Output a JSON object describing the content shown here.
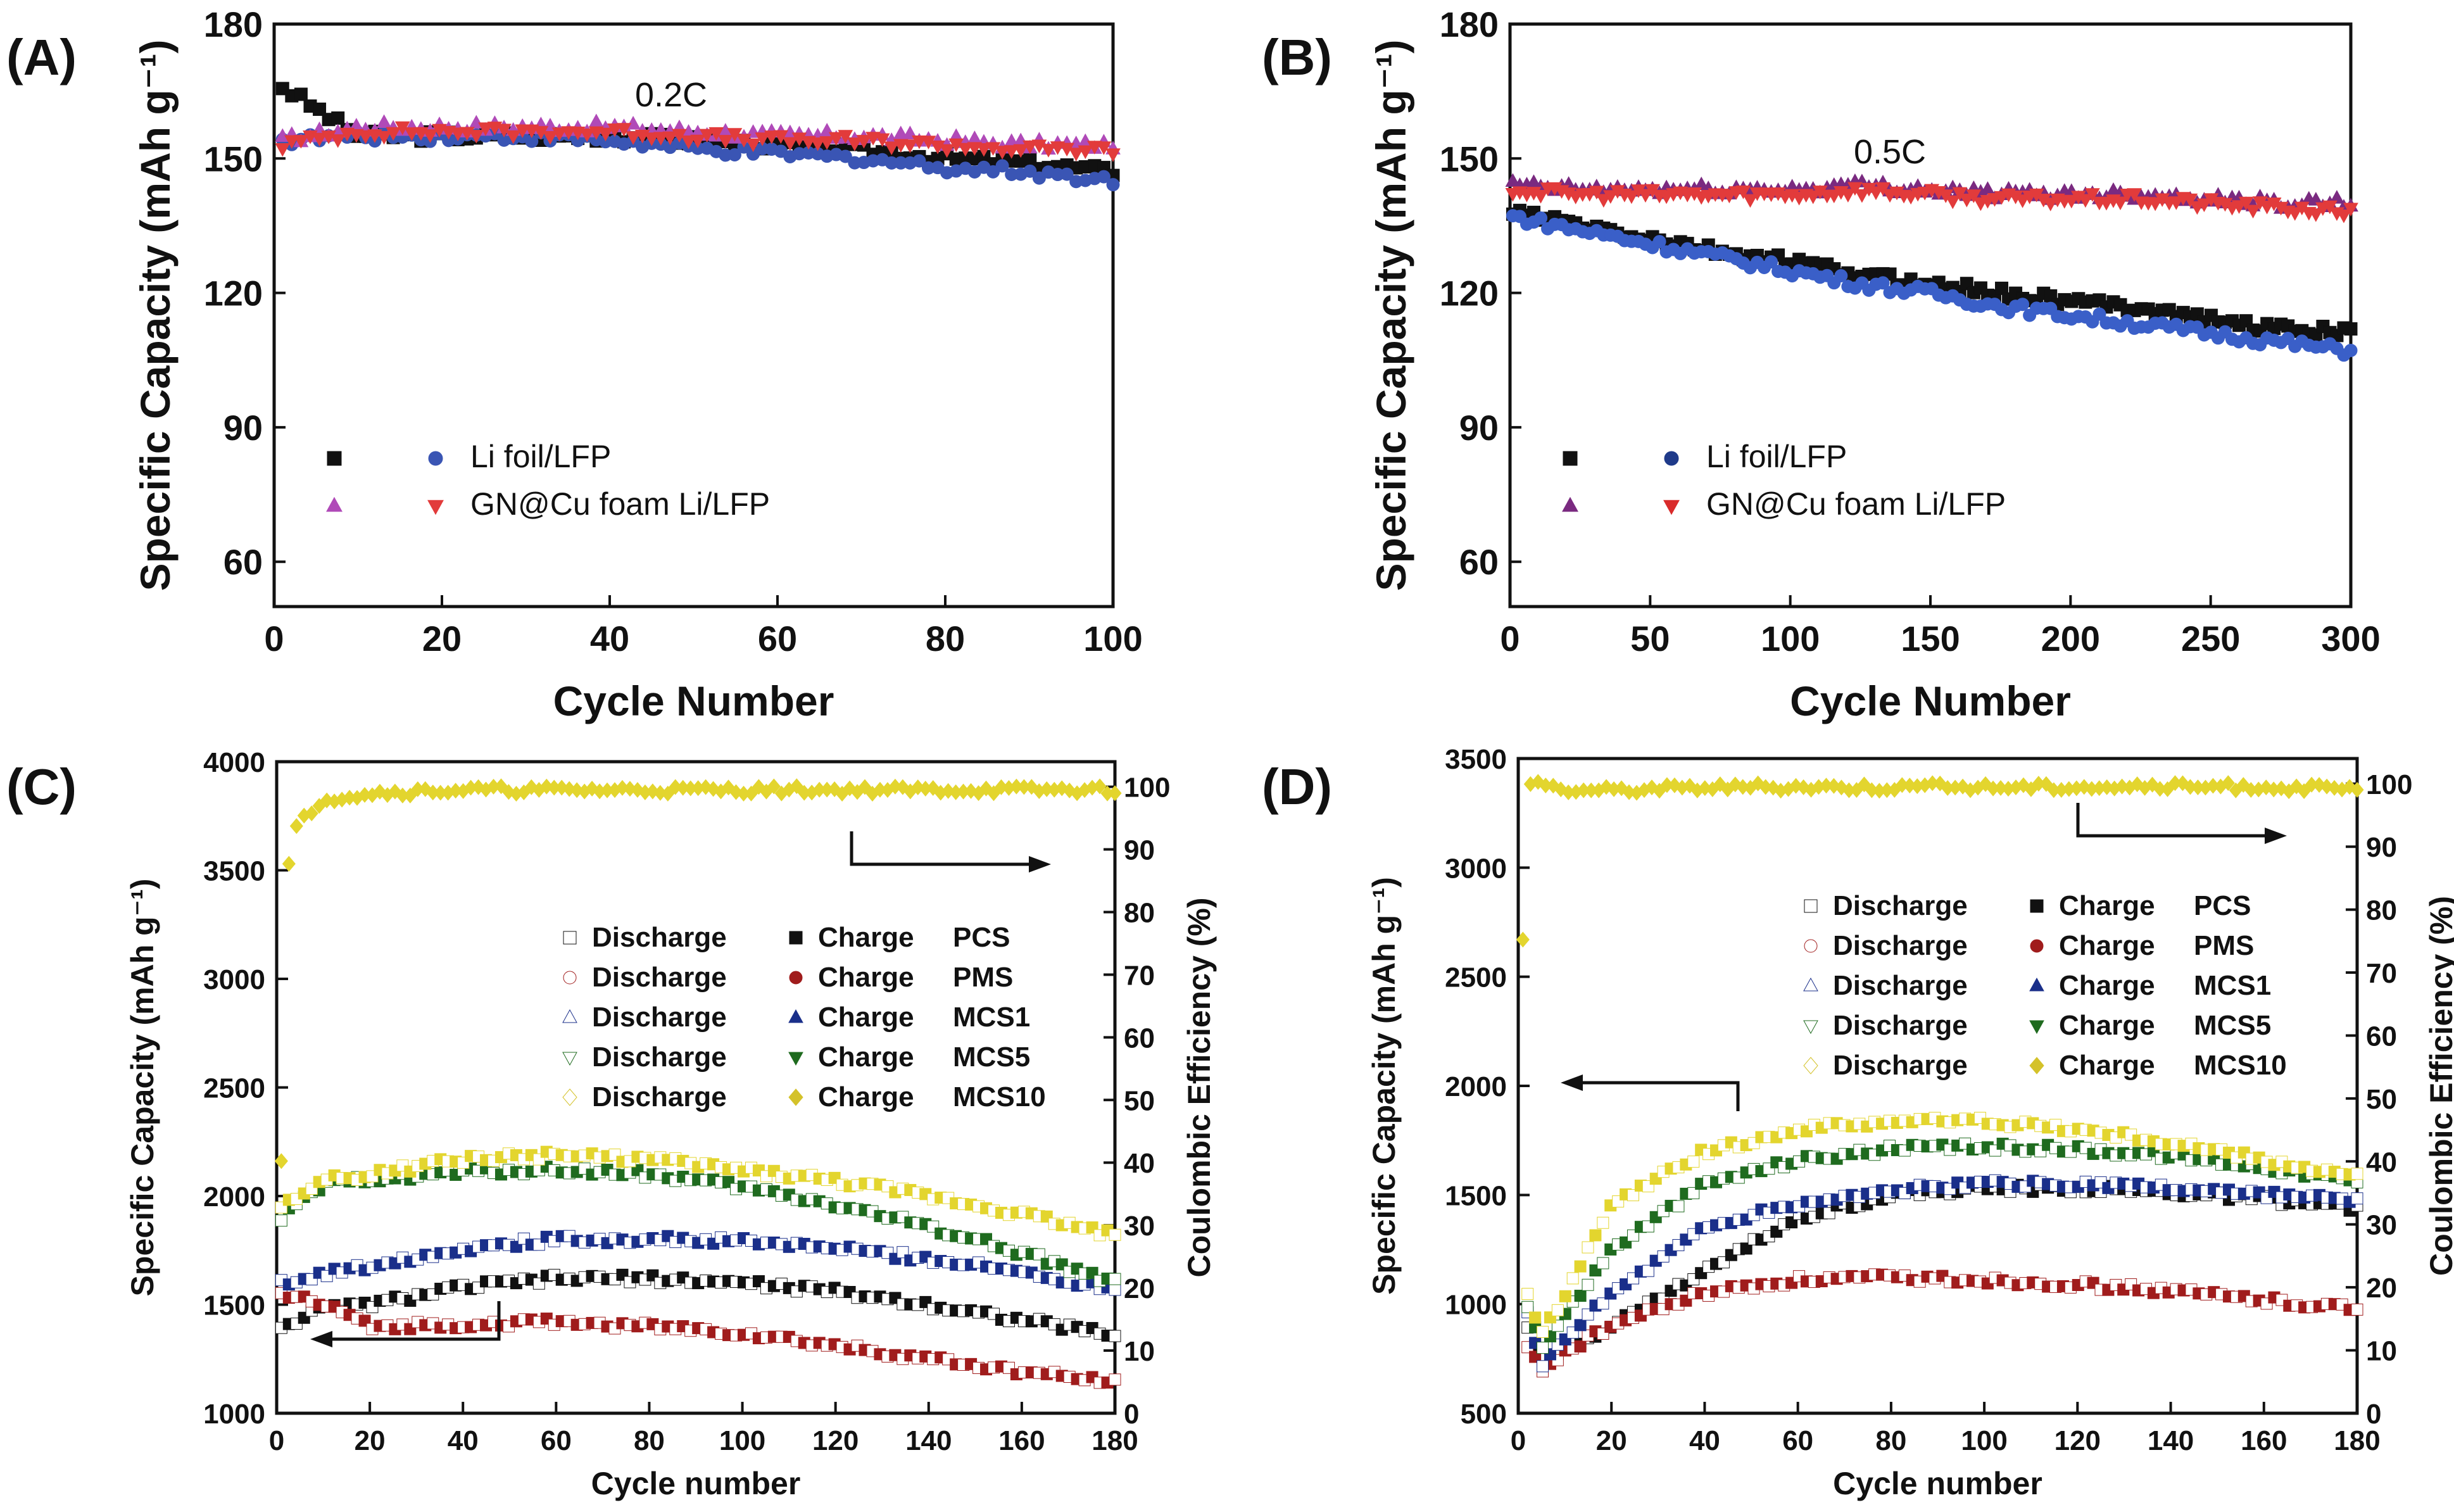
{
  "chart_data": [
    {
      "panel": "(A)",
      "type": "scatter",
      "annotation": "0.2C",
      "xlabel": "Cycle Number",
      "ylabel": "Specific Capacity (mAh g⁻¹)",
      "xlim": [
        0,
        100
      ],
      "ylim": [
        50,
        180
      ],
      "xticks": [
        "0",
        "20",
        "40",
        "60",
        "80",
        "100"
      ],
      "yticks": [
        "60",
        "90",
        "120",
        "150",
        "180"
      ],
      "legend_position": "bottom-left",
      "legend": [
        {
          "label": "Li foil/LFP",
          "charge_color": "#111111",
          "discharge_color": "#3a55b4"
        },
        {
          "label": "GN@Cu foam Li/LFP",
          "charge_color": "#b04ab8",
          "discharge_color": "#e23b3b"
        }
      ],
      "series": [
        {
          "name": "Li foil/LFP charge",
          "marker": "square",
          "color": "#111111",
          "x": [
            1,
            10,
            20,
            30,
            40,
            50,
            60,
            70,
            80,
            90,
            100
          ],
          "y": [
            166,
            155,
            155,
            155,
            155,
            154,
            153,
            152,
            150,
            149,
            147
          ]
        },
        {
          "name": "Li foil/LFP discharge",
          "marker": "circle",
          "color": "#3a55b4",
          "x": [
            1,
            10,
            20,
            30,
            40,
            50,
            60,
            70,
            80,
            90,
            100
          ],
          "y": [
            154,
            155,
            155,
            155,
            154,
            152,
            151,
            150,
            148,
            147,
            145
          ]
        },
        {
          "name": "GN@Cu foam Li/LFP charge",
          "marker": "triangle-up",
          "color": "#b04ab8",
          "x": [
            1,
            10,
            20,
            30,
            40,
            50,
            60,
            70,
            80,
            90,
            100
          ],
          "y": [
            154,
            157,
            157,
            157,
            157,
            156,
            155,
            155,
            154,
            153,
            153
          ]
        },
        {
          "name": "GN@Cu foam Li/LFP discharge",
          "marker": "triangle-down",
          "color": "#e23b3b",
          "x": [
            1,
            10,
            20,
            30,
            40,
            50,
            60,
            70,
            80,
            90,
            100
          ],
          "y": [
            153,
            156,
            156,
            156,
            156,
            155,
            154,
            154,
            153,
            152,
            152
          ]
        }
      ]
    },
    {
      "panel": "(B)",
      "type": "scatter",
      "annotation": "0.5C",
      "xlabel": "Cycle Number",
      "ylabel": "Specific Capacity (mAh g⁻¹)",
      "xlim": [
        0,
        300
      ],
      "ylim": [
        50,
        180
      ],
      "xticks": [
        "0",
        "50",
        "100",
        "150",
        "200",
        "250",
        "300"
      ],
      "yticks": [
        "60",
        "90",
        "120",
        "150",
        "180"
      ],
      "legend_position": "bottom-left",
      "legend": [
        {
          "label": "Li foil/LFP",
          "charge_color": "#111111",
          "discharge_color": "#1f3a8a"
        },
        {
          "label": "GN@Cu foam Li/LFP",
          "charge_color": "#7a2a80",
          "discharge_color": "#d92b2b"
        }
      ],
      "series": [
        {
          "name": "Li foil/LFP charge",
          "marker": "square",
          "color": "#111111",
          "x": [
            1,
            25,
            50,
            75,
            100,
            125,
            150,
            175,
            200,
            225,
            250,
            275,
            300
          ],
          "y": [
            138,
            135,
            132,
            129,
            127,
            124,
            122,
            120,
            118,
            117,
            114,
            112,
            111
          ]
        },
        {
          "name": "Li foil/LFP discharge",
          "marker": "circle",
          "color": "#3a5fc8",
          "x": [
            1,
            25,
            50,
            75,
            100,
            125,
            150,
            175,
            200,
            225,
            250,
            275,
            300
          ],
          "y": [
            137,
            134,
            131,
            128,
            125,
            122,
            120,
            117,
            115,
            113,
            111,
            109,
            107
          ]
        },
        {
          "name": "GN@Cu foam Li/LFP charge",
          "marker": "triangle-up",
          "color": "#7a2a80",
          "x": [
            1,
            25,
            50,
            75,
            100,
            125,
            150,
            175,
            200,
            225,
            250,
            275,
            300
          ],
          "y": [
            144,
            143,
            143,
            143,
            143,
            144,
            143,
            142,
            142,
            142,
            141,
            140,
            140
          ]
        },
        {
          "name": "GN@Cu foam Li/LFP discharge",
          "marker": "triangle-down",
          "color": "#e23b3b",
          "x": [
            1,
            25,
            50,
            75,
            100,
            125,
            150,
            175,
            200,
            225,
            250,
            275,
            300
          ],
          "y": [
            143,
            142,
            142,
            142,
            142,
            143,
            142,
            141,
            141,
            141,
            140,
            139,
            138
          ]
        }
      ]
    },
    {
      "panel": "(C)",
      "type": "scatter",
      "xlabel": "Cycle number",
      "ylabel": "Specific Capacity (mAh g⁻¹)",
      "y2label": "Coulombic Efficiency (%)",
      "xlim": [
        0,
        180
      ],
      "ylim": [
        1000,
        4000
      ],
      "y2lim": [
        0,
        104
      ],
      "xticks": [
        "0",
        "20",
        "40",
        "60",
        "80",
        "100",
        "120",
        "140",
        "160",
        "180"
      ],
      "yticks": [
        "1000",
        "1500",
        "2000",
        "2500",
        "3000",
        "3500",
        "4000"
      ],
      "y2ticks": [
        "0",
        "10",
        "20",
        "30",
        "40",
        "50",
        "60",
        "70",
        "80",
        "90",
        "100"
      ],
      "legend_position": "center-right",
      "legend": [
        {
          "discharge": "Discharge",
          "charge": "Charge",
          "label": "PCS",
          "color": "#111111"
        },
        {
          "discharge": "Discharge",
          "charge": "Charge",
          "label": "PMS",
          "color": "#a01c1c"
        },
        {
          "discharge": "Discharge",
          "charge": "Charge",
          "label": "MCS1",
          "color": "#1a2f8a"
        },
        {
          "discharge": "Discharge",
          "charge": "Charge",
          "label": "MCS5",
          "color": "#1f6b1f"
        },
        {
          "discharge": "Discharge",
          "charge": "Charge",
          "label": "MCS10",
          "color": "#d4c22a"
        }
      ],
      "series": [
        {
          "name": "PCS",
          "color": "#111111",
          "x": [
            1,
            10,
            20,
            40,
            60,
            80,
            100,
            120,
            140,
            160,
            180
          ],
          "y": [
            1400,
            1480,
            1500,
            1580,
            1620,
            1620,
            1600,
            1560,
            1500,
            1430,
            1360
          ]
        },
        {
          "name": "PMS",
          "color": "#a01c1c",
          "x": [
            1,
            10,
            20,
            40,
            60,
            80,
            100,
            120,
            140,
            160,
            180
          ],
          "y": [
            1550,
            1500,
            1400,
            1410,
            1420,
            1400,
            1370,
            1310,
            1250,
            1190,
            1140
          ]
        },
        {
          "name": "MCS1",
          "color": "#1a2f8a",
          "x": [
            1,
            10,
            20,
            40,
            60,
            80,
            100,
            120,
            140,
            160,
            180
          ],
          "y": [
            1600,
            1640,
            1680,
            1760,
            1800,
            1800,
            1790,
            1760,
            1710,
            1650,
            1570
          ]
        },
        {
          "name": "MCS5",
          "color": "#1f6b1f",
          "x": [
            1,
            10,
            20,
            40,
            60,
            80,
            100,
            120,
            140,
            160,
            180
          ],
          "y": [
            1900,
            2050,
            2080,
            2110,
            2120,
            2100,
            2040,
            1960,
            1860,
            1740,
            1600
          ]
        },
        {
          "name": "MCS10",
          "color": "#e3d52e",
          "x": [
            1,
            10,
            20,
            40,
            60,
            80,
            100,
            120,
            140,
            160,
            180
          ],
          "y": [
            1950,
            2070,
            2100,
            2170,
            2190,
            2170,
            2120,
            2070,
            2000,
            1920,
            1820
          ]
        },
        {
          "name": "Coulombic efficiency",
          "axis": "right",
          "color": "#e3d52e",
          "x": [
            1,
            2,
            4,
            7,
            10,
            20,
            40,
            60,
            80,
            100,
            120,
            140,
            160,
            180
          ],
          "y": [
            40,
            85,
            93,
            96,
            98,
            99,
            99.5,
            99.5,
            99.5,
            99.5,
            99.5,
            99.5,
            99.5,
            99.5
          ]
        }
      ]
    },
    {
      "panel": "(D)",
      "type": "scatter",
      "xlabel": "Cycle number",
      "ylabel": "Specific Capacity (mAh g⁻¹)",
      "y2label": "Coulombic Efficiency (%)",
      "xlim": [
        0,
        180
      ],
      "ylim": [
        500,
        3500
      ],
      "y2lim": [
        0,
        104
      ],
      "xticks": [
        "0",
        "20",
        "40",
        "60",
        "80",
        "100",
        "120",
        "140",
        "160",
        "180"
      ],
      "yticks": [
        "500",
        "1000",
        "1500",
        "2000",
        "2500",
        "3000",
        "3500"
      ],
      "y2ticks": [
        "0",
        "10",
        "20",
        "30",
        "40",
        "50",
        "60",
        "70",
        "80",
        "90",
        "100"
      ],
      "legend_position": "top-right",
      "legend": [
        {
          "discharge": "Discharge",
          "charge": "Charge",
          "label": "PCS",
          "color": "#111111"
        },
        {
          "discharge": "Discharge",
          "charge": "Charge",
          "label": "PMS",
          "color": "#a01c1c"
        },
        {
          "discharge": "Discharge",
          "charge": "Charge",
          "label": "MCS1",
          "color": "#1a2f8a"
        },
        {
          "discharge": "Discharge",
          "charge": "Charge",
          "label": "MCS5",
          "color": "#1f6b1f"
        },
        {
          "discharge": "Discharge",
          "charge": "Charge",
          "label": "MCS10",
          "color": "#d4c22a"
        }
      ],
      "series": [
        {
          "name": "PCS",
          "color": "#111111",
          "x": [
            2,
            5,
            10,
            20,
            40,
            60,
            80,
            100,
            120,
            140,
            160,
            180
          ],
          "y": [
            900,
            700,
            800,
            900,
            1150,
            1400,
            1500,
            1530,
            1530,
            1510,
            1480,
            1440
          ]
        },
        {
          "name": "PMS",
          "color": "#a01c1c",
          "x": [
            2,
            5,
            10,
            20,
            40,
            60,
            80,
            100,
            120,
            140,
            160,
            180
          ],
          "y": [
            800,
            700,
            780,
            900,
            1050,
            1110,
            1120,
            1110,
            1090,
            1060,
            1020,
            980
          ]
        },
        {
          "name": "MCS1",
          "color": "#1a2f8a",
          "x": [
            2,
            5,
            10,
            20,
            40,
            60,
            80,
            100,
            120,
            140,
            160,
            180
          ],
          "y": [
            950,
            700,
            850,
            1050,
            1350,
            1460,
            1520,
            1550,
            1550,
            1530,
            1500,
            1470
          ]
        },
        {
          "name": "MCS5",
          "color": "#1f6b1f",
          "x": [
            2,
            5,
            10,
            20,
            40,
            60,
            80,
            100,
            120,
            140,
            160,
            180
          ],
          "y": [
            1000,
            800,
            950,
            1250,
            1550,
            1660,
            1710,
            1720,
            1710,
            1680,
            1630,
            1560
          ]
        },
        {
          "name": "MCS10",
          "color": "#e3d52e",
          "x": [
            2,
            5,
            10,
            20,
            40,
            60,
            80,
            100,
            120,
            140,
            160,
            180
          ],
          "y": [
            1050,
            850,
            1050,
            1450,
            1700,
            1800,
            1840,
            1840,
            1800,
            1740,
            1660,
            1580
          ]
        },
        {
          "name": "Coulombic efficiency",
          "axis": "right",
          "color": "#e3d52e",
          "x": [
            1,
            2,
            3,
            5,
            10,
            20,
            40,
            60,
            80,
            100,
            120,
            140,
            160,
            180
          ],
          "y": [
            75,
            99,
            101,
            100,
            99,
            99,
            99.5,
            99.5,
            99.5,
            99.5,
            99.5,
            99.5,
            99.5,
            99
          ]
        }
      ]
    }
  ]
}
